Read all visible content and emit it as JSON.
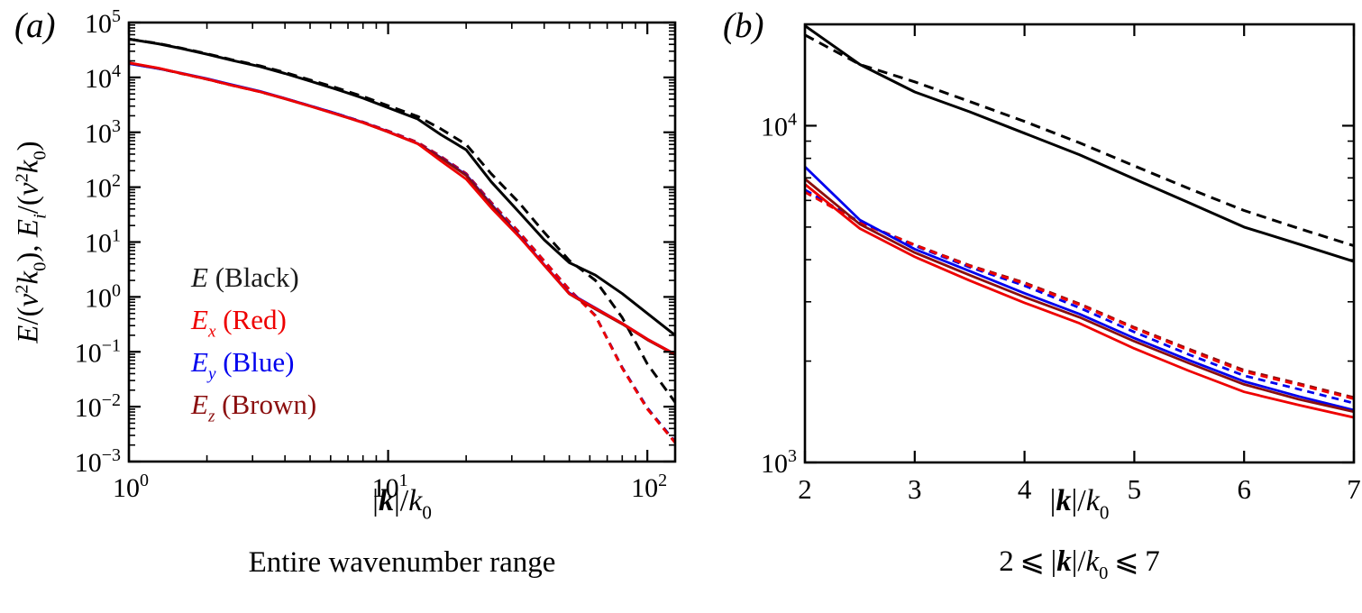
{
  "figure": {
    "background": "#ffffff",
    "panels": [
      {
        "label": "(a)",
        "caption": "Entire wavenumber range",
        "caption_html": "Entire wavenumber range",
        "xlabel": "|k|/k0",
        "xlabel_html": "|<b><i>k</i></b>|/<i>k</i><sub>0</sub>",
        "ylabel": "E/(nu^2 k0), E_i/(nu^2 k0)",
        "ylabel_html": "<i>E</i>/(<i>ν</i><sup>2</sup><i>k</i><sub>0</sub>), <i>E<sub>i</sub></i>/(<i>ν</i><sup>2</sup><i>k</i><sub>0</sub>)"
      },
      {
        "label": "(b)",
        "caption": "2 <= |k|/k0 <= 7",
        "caption_html": "2 ⩽ |<b><i>k</i></b>|/<i>k</i><sub>0</sub> ⩽ 7",
        "xlabel": "|k|/k0",
        "xlabel_html": "|<b><i>k</i></b>|/<i>k</i><sub>0</sub>"
      }
    ]
  },
  "colors": {
    "black": "#000000",
    "red": "#ee0000",
    "blue": "#0000ee",
    "brown": "#8b0e0e"
  },
  "legend": {
    "items": [
      {
        "label": "E (Black)",
        "html": "<i>E</i> (Black)",
        "color": "#1a1a1a"
      },
      {
        "label": "Ex (Red)",
        "html": "<i>E<sub>x</sub></i> (Red)",
        "color": "#ee0000"
      },
      {
        "label": "Ey (Blue)",
        "html": "<i>E<sub>y</sub></i> (Blue)",
        "color": "#0000ee"
      },
      {
        "label": "Ez (Brown)",
        "html": "<i>E<sub>z</sub></i> (Brown)",
        "color": "#8b0e0e"
      }
    ]
  },
  "chart_data": [
    {
      "type": "line",
      "title": "Entire wavenumber range",
      "xlabel": "|k|/k0",
      "ylabel": "E/(nu^2 k0), E_i/(nu^2 k0)",
      "x_axis": {
        "scale": "log",
        "min": 1,
        "max": 128,
        "labeled_exponents": [
          0,
          1,
          2
        ]
      },
      "y_axis": {
        "scale": "log",
        "min": 0.001,
        "max": 100000,
        "labeled_exponents": [
          5,
          4,
          3,
          2,
          1,
          0,
          -1,
          -2,
          -3
        ]
      },
      "grid": false,
      "x": [
        1,
        1.3,
        1.6,
        2,
        2.5,
        3.2,
        4,
        5,
        6.3,
        8,
        10,
        13,
        16,
        20,
        25,
        32,
        40,
        50,
        63,
        80,
        100,
        128
      ],
      "series": [
        {
          "name": "E_dashed",
          "color": "#000000",
          "dash": true,
          "width": 3,
          "values": [
            50000,
            41500,
            34000,
            27000,
            21000,
            16300,
            12300,
            9000,
            6500,
            4500,
            3050,
            1950,
            1150,
            600,
            175,
            52,
            15,
            4.6,
            2.0,
            0.42,
            0.06,
            0.012
          ]
        },
        {
          "name": "Ey_dashed",
          "color": "#0000ee",
          "dash": true,
          "width": 2.8,
          "values": [
            18000,
            14550,
            11750,
            9300,
            7180,
            5500,
            4130,
            3030,
            2190,
            1540,
            1060,
            655,
            362,
            177,
            53,
            15.2,
            4.55,
            1.37,
            0.46,
            0.052,
            0.0095,
            0.0023
          ]
        },
        {
          "name": "Ez_dashed",
          "color": "#8b0e0e",
          "dash": true,
          "width": 2.8,
          "values": [
            18100,
            14580,
            11720,
            9270,
            7160,
            5490,
            4125,
            3025,
            2185,
            1535,
            1055,
            652,
            361,
            176,
            52.5,
            15.1,
            4.52,
            1.36,
            0.455,
            0.051,
            0.0092,
            0.00225
          ]
        },
        {
          "name": "Ex_dashed",
          "color": "#ee0000",
          "dash": true,
          "width": 2.8,
          "values": [
            18200,
            14600,
            11700,
            9250,
            7150,
            5480,
            4120,
            3020,
            2180,
            1530,
            1050,
            650,
            360,
            175,
            52,
            15,
            4.5,
            1.35,
            0.45,
            0.05,
            0.009,
            0.0022
          ]
        },
        {
          "name": "E_solid",
          "color": "#000000",
          "dash": false,
          "width": 3,
          "values": [
            50000,
            41000,
            33500,
            26500,
            20500,
            15800,
            11800,
            8600,
            6100,
            4200,
            2800,
            1750,
            900,
            480,
            125,
            35,
            11,
            4.2,
            2.5,
            1.15,
            0.5,
            0.2
          ]
        },
        {
          "name": "Ey_solid",
          "color": "#0000ee",
          "dash": false,
          "width": 2.8,
          "values": [
            17800,
            14500,
            11900,
            9500,
            7350,
            5600,
            4150,
            3050,
            2200,
            1520,
            1030,
            625,
            345,
            168,
            49,
            13.2,
            3.85,
            1.18,
            0.63,
            0.33,
            0.17,
            0.09
          ]
        },
        {
          "name": "Ez_solid",
          "color": "#8b0e0e",
          "dash": false,
          "width": 2.8,
          "values": [
            18300,
            14700,
            11750,
            9280,
            7170,
            5480,
            4080,
            2990,
            2140,
            1495,
            1015,
            618,
            338,
            163,
            47.5,
            12.9,
            3.75,
            1.13,
            0.6,
            0.32,
            0.165,
            0.088
          ]
        },
        {
          "name": "Ex_solid",
          "color": "#ee0000",
          "dash": false,
          "width": 2.8,
          "values": [
            18500,
            14800,
            11800,
            9300,
            7200,
            5500,
            4100,
            3000,
            2150,
            1500,
            1020,
            620,
            300,
            140,
            42,
            12.5,
            3.8,
            1.15,
            0.62,
            0.33,
            0.17,
            0.09
          ]
        }
      ]
    },
    {
      "type": "line",
      "title": "2 <= |k|/k0 <= 7",
      "xlabel": "|k|/k0",
      "ylabel": "",
      "x_axis": {
        "scale": "linear",
        "min": 2,
        "max": 7,
        "tick_step": 1
      },
      "y_axis": {
        "scale": "log",
        "min": 1000,
        "max": 20000,
        "labeled_exponents": [
          4,
          3
        ]
      },
      "grid": false,
      "x": [
        2,
        2.5,
        3,
        3.5,
        4,
        4.5,
        5,
        5.5,
        6,
        6.5,
        7
      ],
      "series": [
        {
          "name": "E_dashed",
          "color": "#000000",
          "dash": true,
          "width": 3,
          "values": [
            18600,
            15200,
            13500,
            11800,
            10300,
            8900,
            7600,
            6500,
            5600,
            4950,
            4400
          ]
        },
        {
          "name": "E_solid",
          "color": "#000000",
          "dash": false,
          "width": 3,
          "values": [
            19800,
            15200,
            12600,
            11000,
            9500,
            8200,
            6950,
            5900,
            5000,
            4450,
            3950
          ]
        },
        {
          "name": "Ez_dashed",
          "color": "#8b0e0e",
          "dash": true,
          "width": 2.8,
          "values": [
            6400,
            5170,
            4430,
            3850,
            3420,
            2960,
            2520,
            2170,
            1880,
            1715,
            1560
          ]
        },
        {
          "name": "Ey_dashed",
          "color": "#0000ee",
          "dash": true,
          "width": 2.8,
          "values": [
            6450,
            5180,
            4400,
            3800,
            3350,
            2880,
            2440,
            2090,
            1810,
            1650,
            1500
          ]
        },
        {
          "name": "Ex_dashed",
          "color": "#ee0000",
          "dash": true,
          "width": 2.8,
          "values": [
            6350,
            5150,
            4420,
            3830,
            3400,
            2940,
            2500,
            2150,
            1860,
            1700,
            1545
          ]
        },
        {
          "name": "Ey_solid",
          "color": "#0000ee",
          "dash": false,
          "width": 2.8,
          "values": [
            7550,
            5250,
            4300,
            3700,
            3180,
            2760,
            2340,
            2010,
            1740,
            1570,
            1430
          ]
        },
        {
          "name": "Ez_solid",
          "color": "#8b0e0e",
          "dash": false,
          "width": 2.8,
          "values": [
            6950,
            5100,
            4200,
            3600,
            3100,
            2700,
            2290,
            1970,
            1705,
            1540,
            1415
          ]
        },
        {
          "name": "Ex_solid",
          "color": "#ee0000",
          "dash": false,
          "width": 2.8,
          "values": [
            6700,
            4950,
            4080,
            3470,
            2980,
            2590,
            2180,
            1870,
            1620,
            1480,
            1360
          ]
        }
      ]
    }
  ]
}
